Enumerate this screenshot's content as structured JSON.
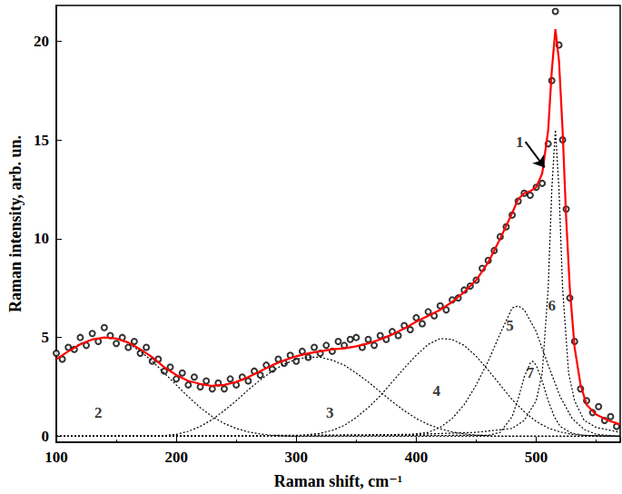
{
  "chart_data": {
    "type": "line",
    "x_label": "Raman shift, cm⁻¹",
    "y_label": "Raman intensity, arb. un.",
    "xlim": [
      100,
      570
    ],
    "xticks": [
      100,
      200,
      300,
      400,
      500
    ],
    "ylim": [
      -0.3,
      21.8
    ],
    "yticks": [
      0,
      5,
      10,
      15,
      20
    ],
    "grid": false,
    "series": [
      {
        "type": "scatter",
        "marker": "circle",
        "color": "#000000",
        "x": [
          100,
          105,
          110,
          115,
          120,
          125,
          130,
          135,
          140,
          145,
          150,
          155,
          160,
          165,
          170,
          175,
          180,
          185,
          190,
          195,
          200,
          205,
          210,
          215,
          220,
          225,
          230,
          235,
          240,
          245,
          250,
          255,
          260,
          265,
          270,
          275,
          280,
          285,
          290,
          295,
          300,
          305,
          310,
          315,
          320,
          325,
          330,
          335,
          340,
          345,
          350,
          355,
          360,
          365,
          370,
          375,
          380,
          385,
          390,
          395,
          400,
          405,
          410,
          415,
          420,
          425,
          430,
          435,
          440,
          445,
          450,
          455,
          460,
          465,
          470,
          475,
          480,
          485,
          490,
          495,
          500,
          505,
          510,
          513,
          516,
          519,
          522,
          525,
          528,
          532,
          537,
          542,
          547,
          552,
          557,
          562,
          567
        ],
        "values": [
          4.2,
          3.9,
          4.5,
          4.4,
          5.0,
          4.6,
          5.2,
          4.8,
          5.5,
          5.1,
          4.7,
          5.0,
          4.5,
          4.8,
          4.2,
          4.5,
          3.8,
          3.9,
          3.3,
          3.5,
          2.9,
          3.2,
          2.6,
          3.0,
          2.5,
          2.8,
          2.4,
          2.7,
          2.4,
          2.9,
          2.6,
          3.0,
          2.8,
          3.3,
          3.1,
          3.6,
          3.4,
          3.9,
          3.7,
          4.1,
          3.8,
          4.3,
          4.0,
          4.5,
          4.2,
          4.6,
          4.3,
          4.8,
          4.6,
          4.9,
          5.0,
          4.5,
          4.9,
          4.6,
          5.1,
          4.9,
          5.3,
          5.1,
          5.6,
          5.4,
          6.0,
          5.7,
          6.3,
          6.1,
          6.6,
          6.4,
          6.9,
          7.0,
          7.4,
          7.6,
          7.9,
          8.5,
          8.9,
          9.4,
          10.1,
          10.6,
          11.2,
          11.9,
          12.3,
          12.2,
          12.6,
          12.8,
          14.8,
          18.0,
          21.5,
          19.8,
          15.0,
          11.5,
          7.0,
          4.8,
          2.4,
          1.8,
          1.2,
          1.5,
          0.8,
          1.0,
          0.5
        ]
      },
      {
        "type": "line",
        "line_style": "solid",
        "color": "#ff0000",
        "x": [
          100,
          110,
          120,
          130,
          140,
          150,
          160,
          170,
          180,
          190,
          200,
          210,
          220,
          230,
          240,
          250,
          260,
          270,
          280,
          290,
          300,
          310,
          320,
          330,
          340,
          350,
          360,
          370,
          380,
          390,
          400,
          410,
          420,
          430,
          440,
          450,
          460,
          470,
          480,
          485,
          490,
          495,
          500,
          505,
          510,
          513,
          516,
          519,
          522,
          525,
          528,
          532,
          537,
          542,
          550,
          560,
          570
        ],
        "values": [
          3.9,
          4.3,
          4.65,
          4.9,
          5.0,
          4.95,
          4.75,
          4.4,
          4.0,
          3.5,
          3.1,
          2.8,
          2.65,
          2.55,
          2.6,
          2.75,
          3.0,
          3.3,
          3.6,
          3.85,
          4.05,
          4.2,
          4.3,
          4.4,
          4.45,
          4.55,
          4.7,
          4.9,
          5.15,
          5.45,
          5.8,
          6.1,
          6.4,
          6.8,
          7.3,
          7.9,
          8.8,
          10.0,
          11.3,
          12.0,
          12.3,
          12.4,
          12.6,
          13.3,
          15.5,
          18.5,
          20.6,
          19.0,
          15.5,
          11.0,
          7.5,
          4.5,
          2.6,
          1.6,
          1.1,
          0.8,
          0.6
        ]
      },
      {
        "type": "line",
        "line_style": "dotted",
        "color": "#000000",
        "x": [
          100,
          110,
          120,
          130,
          140,
          150,
          160,
          170,
          180,
          190,
          200,
          210,
          220,
          230,
          240,
          250,
          260,
          270,
          280,
          290,
          300,
          570
        ],
        "values": [
          3.9,
          4.3,
          4.7,
          4.9,
          5.0,
          4.95,
          4.7,
          4.3,
          3.8,
          3.2,
          2.6,
          2.0,
          1.45,
          1.0,
          0.65,
          0.4,
          0.22,
          0.12,
          0.05,
          0.02,
          0,
          0
        ]
      },
      {
        "type": "line",
        "line_style": "dotted",
        "color": "#000000",
        "x": [
          100,
          190,
          200,
          210,
          220,
          230,
          240,
          250,
          260,
          270,
          280,
          290,
          300,
          310,
          320,
          330,
          340,
          350,
          360,
          370,
          380,
          390,
          400,
          410,
          420,
          430,
          440,
          450,
          470,
          570
        ],
        "values": [
          0,
          0.04,
          0.1,
          0.25,
          0.5,
          0.85,
          1.3,
          1.8,
          2.35,
          2.85,
          3.3,
          3.65,
          3.9,
          4.0,
          4.0,
          3.85,
          3.6,
          3.2,
          2.75,
          2.25,
          1.75,
          1.3,
          0.9,
          0.6,
          0.38,
          0.22,
          0.12,
          0.06,
          0,
          0
        ]
      },
      {
        "type": "line",
        "line_style": "dotted",
        "color": "#000000",
        "x": [
          100,
          300,
          320,
          330,
          340,
          350,
          360,
          370,
          380,
          390,
          400,
          410,
          420,
          430,
          440,
          450,
          460,
          470,
          480,
          490,
          500,
          510,
          520,
          530,
          540,
          560,
          570
        ],
        "values": [
          0,
          0.02,
          0.15,
          0.3,
          0.55,
          0.95,
          1.45,
          2.05,
          2.75,
          3.45,
          4.1,
          4.65,
          4.95,
          4.9,
          4.6,
          4.05,
          3.35,
          2.6,
          1.85,
          1.25,
          0.75,
          0.42,
          0.22,
          0.1,
          0.05,
          0,
          0
        ]
      },
      {
        "type": "line",
        "line_style": "dotted",
        "color": "#000000",
        "x": [
          100,
          390,
          410,
          420,
          430,
          440,
          450,
          460,
          470,
          480,
          485,
          490,
          500,
          510,
          520,
          530,
          540,
          550,
          570
        ],
        "values": [
          0,
          0.05,
          0.2,
          0.45,
          0.9,
          1.6,
          2.6,
          3.8,
          5.2,
          6.5,
          6.6,
          6.4,
          5.3,
          3.6,
          2.0,
          0.9,
          0.35,
          0.1,
          0
        ]
      },
      {
        "type": "line",
        "line_style": "dotted",
        "color": "#000000",
        "x": [
          100,
          300,
          400,
          450,
          480,
          490,
          500,
          505,
          510,
          513,
          516,
          519,
          522,
          527,
          532,
          540,
          550,
          570
        ],
        "values": [
          0,
          0.05,
          0.1,
          0.2,
          0.4,
          0.8,
          1.8,
          3.2,
          7.5,
          12.5,
          15.5,
          12.5,
          7.5,
          3.2,
          1.8,
          0.8,
          0.45,
          0.2
        ]
      },
      {
        "type": "line",
        "line_style": "dotted",
        "color": "#000000",
        "x": [
          100,
          460,
          470,
          480,
          485,
          490,
          495,
          497,
          500,
          505,
          510,
          515,
          520,
          530,
          540,
          570
        ],
        "values": [
          0,
          0.05,
          0.2,
          1.0,
          1.9,
          3.0,
          3.7,
          3.8,
          3.6,
          2.8,
          1.8,
          1.0,
          0.5,
          0.15,
          0.05,
          0
        ]
      }
    ],
    "annotations": [
      {
        "text": "1",
        "x": 491,
        "y": 14.9,
        "arrow_to": [
          507,
          13.6
        ]
      },
      {
        "text": "2",
        "x": 135,
        "y": 1.2
      },
      {
        "text": "3",
        "x": 328,
        "y": 1.2
      },
      {
        "text": "4",
        "x": 417,
        "y": 2.3
      },
      {
        "text": "5",
        "x": 478,
        "y": 5.6
      },
      {
        "text": "6",
        "x": 513,
        "y": 6.6
      },
      {
        "text": "7",
        "x": 495,
        "y": 3.2
      }
    ]
  }
}
